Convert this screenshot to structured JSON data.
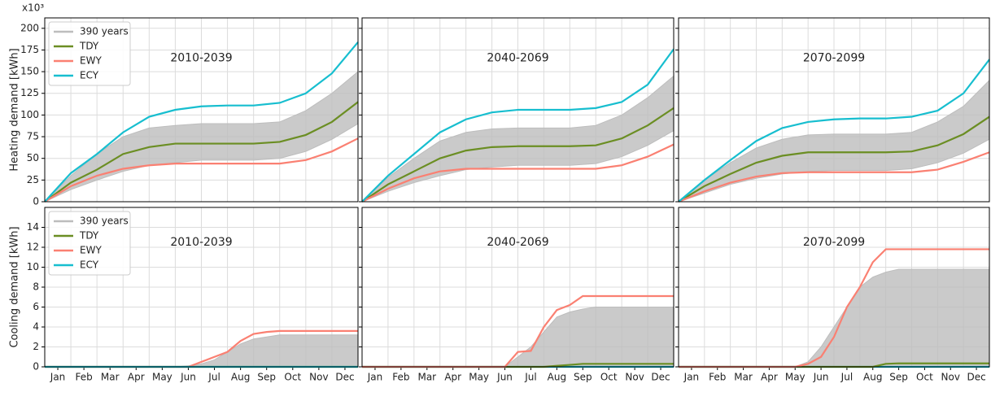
{
  "chart_data": [
    {
      "type": "line",
      "title": "2010-2039",
      "ylabel": "Heating demand [kWh]",
      "y_offset_label": "x10³",
      "legend": "upper left",
      "grid": true,
      "ytick_labels": true,
      "x": [
        0,
        1,
        2,
        3,
        4,
        5,
        6,
        7,
        8,
        9,
        10,
        11,
        12
      ],
      "xlim": [
        0,
        12
      ],
      "ylim": [
        0,
        212
      ],
      "yticks": [
        0,
        25,
        50,
        75,
        100,
        125,
        150,
        175,
        200
      ],
      "series": [
        {
          "name": "390 years",
          "color": "#bdbdbd",
          "values": [
            0,
            30,
            55,
            75,
            85,
            88,
            90,
            90,
            90,
            92,
            105,
            125,
            150
          ],
          "low": [
            0,
            14,
            25,
            35,
            42,
            45,
            48,
            48,
            48,
            50,
            58,
            72,
            90
          ]
        },
        {
          "name": "TDY",
          "color": "#6b8e23",
          "values": [
            0,
            22,
            37,
            55,
            63,
            67,
            67,
            67,
            67,
            69,
            77,
            92,
            115
          ]
        },
        {
          "name": "EWY",
          "color": "#fa8072",
          "values": [
            0,
            18,
            30,
            38,
            42,
            44,
            44,
            44,
            44,
            44,
            48,
            58,
            73
          ]
        },
        {
          "name": "ECY",
          "color": "#17becf",
          "values": [
            0,
            33,
            55,
            80,
            98,
            106,
            110,
            111,
            111,
            114,
            125,
            148,
            184
          ]
        }
      ]
    },
    {
      "type": "line",
      "title": "2040-2069",
      "grid": true,
      "ytick_labels": false,
      "x": [
        0,
        1,
        2,
        3,
        4,
        5,
        6,
        7,
        8,
        9,
        10,
        11,
        12
      ],
      "xlim": [
        0,
        12
      ],
      "ylim": [
        0,
        212
      ],
      "yticks": [
        0,
        25,
        50,
        75,
        100,
        125,
        150,
        175,
        200
      ],
      "series": [
        {
          "color": "#bdbdbd",
          "values": [
            0,
            28,
            50,
            70,
            80,
            84,
            85,
            85,
            85,
            88,
            100,
            120,
            145
          ],
          "low": [
            0,
            12,
            22,
            30,
            37,
            40,
            42,
            42,
            42,
            44,
            52,
            65,
            82
          ]
        },
        {
          "color": "#6b8e23",
          "values": [
            0,
            20,
            35,
            50,
            59,
            63,
            64,
            64,
            64,
            65,
            73,
            88,
            108
          ]
        },
        {
          "color": "#fa8072",
          "values": [
            0,
            15,
            27,
            35,
            38,
            38,
            38,
            38,
            38,
            38,
            42,
            52,
            66
          ]
        },
        {
          "color": "#17becf",
          "values": [
            0,
            30,
            55,
            80,
            95,
            103,
            106,
            106,
            106,
            108,
            115,
            135,
            176
          ]
        }
      ]
    },
    {
      "type": "line",
      "title": "2070-2099",
      "grid": true,
      "ytick_labels": false,
      "x": [
        0,
        1,
        2,
        3,
        4,
        5,
        6,
        7,
        8,
        9,
        10,
        11,
        12
      ],
      "xlim": [
        0,
        12
      ],
      "ylim": [
        0,
        212
      ],
      "yticks": [
        0,
        25,
        50,
        75,
        100,
        125,
        150,
        175,
        200
      ],
      "series": [
        {
          "color": "#bdbdbd",
          "values": [
            0,
            25,
            45,
            62,
            72,
            77,
            78,
            78,
            78,
            80,
            92,
            110,
            140
          ],
          "low": [
            0,
            10,
            20,
            27,
            32,
            35,
            36,
            36,
            36,
            38,
            45,
            56,
            72
          ]
        },
        {
          "color": "#6b8e23",
          "values": [
            0,
            18,
            32,
            45,
            53,
            57,
            57,
            57,
            57,
            58,
            65,
            78,
            98
          ]
        },
        {
          "color": "#fa8072",
          "values": [
            0,
            12,
            22,
            29,
            33,
            34,
            34,
            34,
            34,
            34,
            37,
            46,
            57
          ]
        },
        {
          "color": "#17becf",
          "values": [
            0,
            25,
            48,
            70,
            85,
            92,
            95,
            96,
            96,
            98,
            105,
            125,
            164
          ]
        }
      ]
    },
    {
      "type": "line",
      "title": "2010-2039",
      "ylabel": "Cooling demand [kWh]",
      "legend": "upper left",
      "grid": true,
      "ytick_labels": true,
      "x": [
        0,
        0.5,
        1,
        1.5,
        2,
        2.5,
        3,
        3.5,
        4,
        4.5,
        5,
        5.5,
        6,
        6.5,
        7,
        7.5,
        8,
        8.5,
        9,
        9.5,
        10,
        10.5,
        11,
        11.5,
        12
      ],
      "xlim": [
        0,
        12
      ],
      "ylim": [
        0,
        16
      ],
      "yticks": [
        0,
        2,
        4,
        6,
        8,
        10,
        12,
        14
      ],
      "xticks": [
        {
          "value": 0.5,
          "label": "Jan"
        },
        {
          "value": 1.5,
          "label": "Feb"
        },
        {
          "value": 2.5,
          "label": "Mar"
        },
        {
          "value": 3.5,
          "label": "Apr"
        },
        {
          "value": 4.5,
          "label": "May"
        },
        {
          "value": 5.5,
          "label": "Jun"
        },
        {
          "value": 6.5,
          "label": "Jul"
        },
        {
          "value": 7.5,
          "label": "Aug"
        },
        {
          "value": 8.5,
          "label": "Sep"
        },
        {
          "value": 9.5,
          "label": "Oct"
        },
        {
          "value": 10.5,
          "label": "Nov"
        },
        {
          "value": 11.5,
          "label": "Dec"
        }
      ],
      "series": [
        {
          "name": "390 years",
          "color": "#bdbdbd",
          "values": [
            0,
            0,
            0,
            0,
            0,
            0,
            0,
            0,
            0,
            0,
            0,
            0.1,
            0.3,
            0.7,
            1.5,
            2.3,
            2.8,
            3.0,
            3.2,
            3.2,
            3.2,
            3.2,
            3.2,
            3.2,
            3.2
          ],
          "low": [
            0,
            0,
            0,
            0,
            0,
            0,
            0,
            0,
            0,
            0,
            0,
            0,
            0,
            0,
            0,
            0,
            0,
            0,
            0,
            0,
            0,
            0,
            0,
            0,
            0
          ]
        },
        {
          "name": "TDY",
          "color": "#6b8e23",
          "values": [
            0,
            0,
            0,
            0,
            0,
            0,
            0,
            0,
            0,
            0,
            0,
            0,
            0,
            0,
            0,
            0,
            0,
            0,
            0,
            0,
            0,
            0,
            0,
            0,
            0
          ]
        },
        {
          "name": "EWY",
          "color": "#fa8072",
          "values": [
            0,
            0,
            0,
            0,
            0,
            0,
            0,
            0,
            0,
            0,
            0,
            0,
            0.5,
            1.0,
            1.5,
            2.6,
            3.3,
            3.5,
            3.6,
            3.6,
            3.6,
            3.6,
            3.6,
            3.6,
            3.6
          ]
        },
        {
          "name": "ECY",
          "color": "#17becf",
          "values": [
            0,
            0,
            0,
            0,
            0,
            0,
            0,
            0,
            0,
            0,
            0,
            0,
            0,
            0,
            0,
            0,
            0,
            0,
            0,
            0,
            0,
            0,
            0,
            0,
            0
          ]
        }
      ]
    },
    {
      "type": "line",
      "title": "2040-2069",
      "grid": true,
      "ytick_labels": false,
      "x": [
        0,
        0.5,
        1,
        1.5,
        2,
        2.5,
        3,
        3.5,
        4,
        4.5,
        5,
        5.5,
        6,
        6.5,
        7,
        7.5,
        8,
        8.5,
        9,
        9.5,
        10,
        10.5,
        11,
        11.5,
        12
      ],
      "xlim": [
        0,
        12
      ],
      "ylim": [
        0,
        16
      ],
      "yticks": [
        0,
        2,
        4,
        6,
        8,
        10,
        12,
        14
      ],
      "xticks": [
        {
          "value": 0.5,
          "label": "Jan"
        },
        {
          "value": 1.5,
          "label": "Feb"
        },
        {
          "value": 2.5,
          "label": "Mar"
        },
        {
          "value": 3.5,
          "label": "Apr"
        },
        {
          "value": 4.5,
          "label": "May"
        },
        {
          "value": 5.5,
          "label": "Jun"
        },
        {
          "value": 6.5,
          "label": "Jul"
        },
        {
          "value": 7.5,
          "label": "Aug"
        },
        {
          "value": 8.5,
          "label": "Sep"
        },
        {
          "value": 9.5,
          "label": "Oct"
        },
        {
          "value": 10.5,
          "label": "Nov"
        },
        {
          "value": 11.5,
          "label": "Dec"
        }
      ],
      "series": [
        {
          "color": "#bdbdbd",
          "values": [
            0,
            0,
            0,
            0,
            0,
            0,
            0,
            0,
            0,
            0,
            0,
            0,
            1.0,
            2.0,
            3.5,
            5.0,
            5.5,
            5.8,
            6.0,
            6.0,
            6.0,
            6.0,
            6.0,
            6.0,
            6.0
          ],
          "low": [
            0,
            0,
            0,
            0,
            0,
            0,
            0,
            0,
            0,
            0,
            0,
            0,
            0,
            0,
            0,
            0,
            0,
            0,
            0,
            0,
            0,
            0,
            0,
            0,
            0
          ]
        },
        {
          "color": "#17becf",
          "values": [
            0,
            0,
            0,
            0,
            0,
            0,
            0,
            0,
            0,
            0,
            0,
            0,
            0,
            0,
            0,
            0,
            0,
            0,
            0,
            0,
            0,
            0,
            0,
            0,
            0
          ]
        },
        {
          "color": "#6b8e23",
          "values": [
            0,
            0,
            0,
            0,
            0,
            0,
            0,
            0,
            0,
            0,
            0,
            0,
            0,
            0,
            0,
            0.1,
            0.2,
            0.3,
            0.3,
            0.3,
            0.3,
            0.3,
            0.3,
            0.3,
            0.3
          ]
        },
        {
          "color": "#fa8072",
          "values": [
            0,
            0,
            0,
            0,
            0,
            0,
            0,
            0,
            0,
            0,
            0,
            0,
            1.5,
            1.6,
            4.0,
            5.7,
            6.2,
            7.1,
            7.1,
            7.1,
            7.1,
            7.1,
            7.1,
            7.1,
            7.1
          ]
        }
      ]
    },
    {
      "type": "line",
      "title": "2070-2099",
      "grid": true,
      "ytick_labels": false,
      "x": [
        0,
        0.5,
        1,
        1.5,
        2,
        2.5,
        3,
        3.5,
        4,
        4.5,
        5,
        5.5,
        6,
        6.5,
        7,
        7.5,
        8,
        8.5,
        9,
        9.5,
        10,
        10.5,
        11,
        11.5,
        12
      ],
      "xlim": [
        0,
        12
      ],
      "ylim": [
        0,
        16
      ],
      "yticks": [
        0,
        2,
        4,
        6,
        8,
        10,
        12,
        14
      ],
      "xticks": [
        {
          "value": 0.5,
          "label": "Jan"
        },
        {
          "value": 1.5,
          "label": "Feb"
        },
        {
          "value": 2.5,
          "label": "Mar"
        },
        {
          "value": 3.5,
          "label": "Apr"
        },
        {
          "value": 4.5,
          "label": "May"
        },
        {
          "value": 5.5,
          "label": "Jun"
        },
        {
          "value": 6.5,
          "label": "Jul"
        },
        {
          "value": 7.5,
          "label": "Aug"
        },
        {
          "value": 8.5,
          "label": "Sep"
        },
        {
          "value": 9.5,
          "label": "Oct"
        },
        {
          "value": 10.5,
          "label": "Nov"
        },
        {
          "value": 11.5,
          "label": "Dec"
        }
      ],
      "series": [
        {
          "color": "#bdbdbd",
          "values": [
            0,
            0,
            0,
            0,
            0,
            0,
            0,
            0,
            0,
            0,
            0.5,
            2,
            4,
            6,
            8,
            9,
            9.5,
            9.8,
            9.8,
            9.8,
            9.8,
            9.8,
            9.8,
            9.8,
            9.8
          ],
          "low": [
            0,
            0,
            0,
            0,
            0,
            0,
            0,
            0,
            0,
            0,
            0,
            0,
            0,
            0,
            0,
            0,
            0,
            0,
            0,
            0,
            0,
            0,
            0,
            0,
            0
          ]
        },
        {
          "color": "#17becf",
          "values": [
            0,
            0,
            0,
            0,
            0,
            0,
            0,
            0,
            0,
            0,
            0,
            0,
            0,
            0,
            0,
            0,
            0,
            0,
            0,
            0,
            0,
            0,
            0,
            0,
            0
          ]
        },
        {
          "color": "#6b8e23",
          "values": [
            0,
            0,
            0,
            0,
            0,
            0,
            0,
            0,
            0,
            0,
            0,
            0,
            0,
            0,
            0,
            0,
            0.3,
            0.35,
            0.35,
            0.35,
            0.35,
            0.35,
            0.35,
            0.35,
            0.35
          ]
        },
        {
          "color": "#fa8072",
          "values": [
            0,
            0,
            0,
            0,
            0,
            0,
            0,
            0,
            0,
            0,
            0.3,
            1.0,
            3.0,
            6.0,
            8.0,
            10.5,
            11.8,
            11.8,
            11.8,
            11.8,
            11.8,
            11.8,
            11.8,
            11.8,
            11.8
          ]
        }
      ]
    }
  ]
}
